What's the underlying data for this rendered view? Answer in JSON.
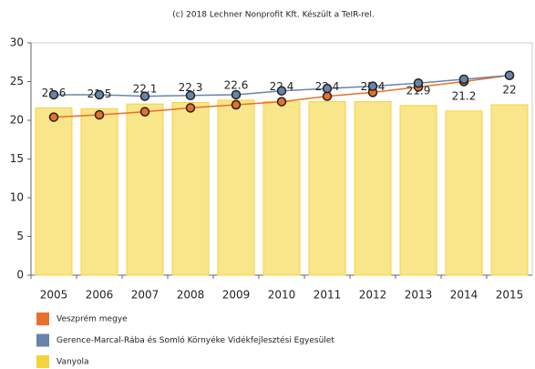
{
  "chart_data": {
    "type": "bar",
    "title": "(c) 2018 Lechner Nonprofit Kft. Készült a TeIR-rel.",
    "categories": [
      "2005",
      "2006",
      "2007",
      "2008",
      "2009",
      "2010",
      "2011",
      "2012",
      "2013",
      "2014",
      "2015"
    ],
    "series": [
      {
        "name": "Veszprém megye",
        "type": "line",
        "color": "#e8702a",
        "values": [
          20.4,
          20.7,
          21.1,
          21.6,
          22.0,
          22.4,
          23.1,
          23.6,
          24.3,
          25.0,
          25.8
        ]
      },
      {
        "name": "Gerence-Marcal-Rába és Somló Környéke Vidékfejlesztési Egyesület",
        "type": "line",
        "color": "#6a84a8",
        "values": [
          23.3,
          23.3,
          23.1,
          23.2,
          23.3,
          23.8,
          24.1,
          24.4,
          24.8,
          25.3,
          25.8
        ]
      },
      {
        "name": "Vanyola",
        "type": "bar",
        "color": "#f5d33c",
        "values": [
          21.6,
          21.5,
          22.1,
          22.3,
          22.6,
          22.4,
          22.4,
          22.4,
          21.9,
          21.2,
          22
        ]
      }
    ],
    "ylim": [
      0,
      30
    ],
    "yticks": [
      0,
      5,
      10,
      15,
      20,
      25,
      30
    ],
    "grid": false,
    "legend": "bottom"
  }
}
